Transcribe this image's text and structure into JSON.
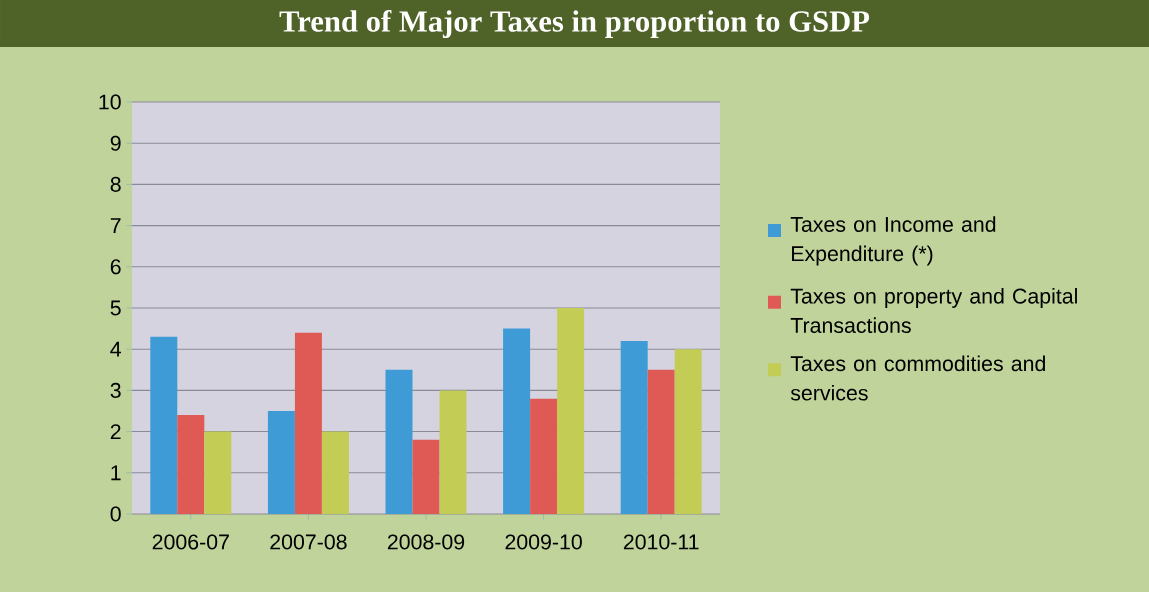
{
  "chart_data": {
    "type": "bar",
    "title": "Trend of Major Taxes in proportion to GSDP",
    "categories": [
      "2006-07",
      "2007-08",
      "2008-09",
      "2009-10",
      "2010-11"
    ],
    "series": [
      {
        "name": "Taxes on Income and Expenditure (*)",
        "color": "#3e9bd6",
        "values": [
          4.3,
          2.5,
          3.5,
          4.5,
          4.2
        ]
      },
      {
        "name": "Taxes on property and Capital Transactions",
        "color": "#e05a55",
        "values": [
          2.4,
          4.4,
          1.8,
          2.8,
          3.5
        ]
      },
      {
        "name": "Taxes on commodities and services",
        "color": "#c3cc55",
        "values": [
          2.0,
          2.0,
          3.0,
          5.0,
          4.0
        ]
      }
    ],
    "ylim": [
      0,
      10
    ],
    "yticks": [
      0,
      1,
      2,
      3,
      4,
      5,
      6,
      7,
      8,
      9,
      10
    ],
    "grid": "y",
    "legend": "right"
  }
}
